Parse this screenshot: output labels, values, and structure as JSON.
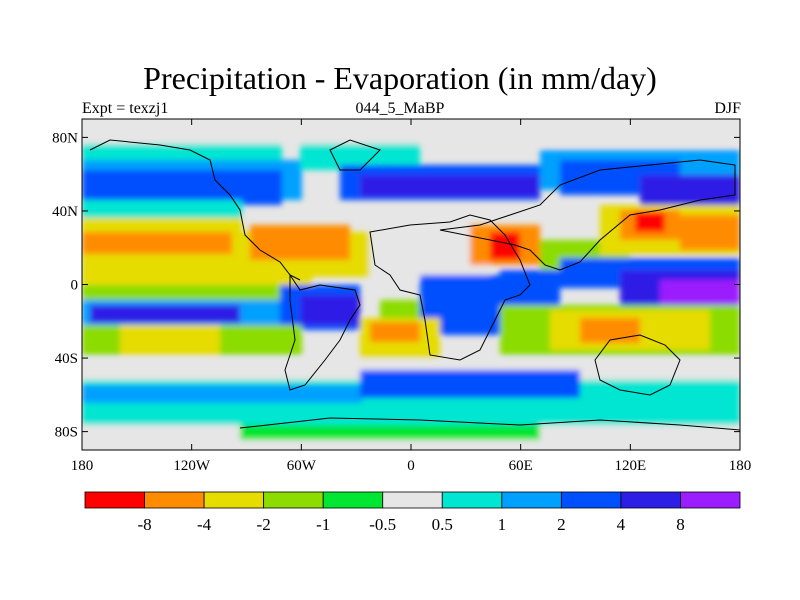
{
  "header": {
    "title": "Precipitation - Evaporation (in mm/day)",
    "left_subtitle": "Expt = texzj1",
    "center_subtitle": "044_5_MaBP",
    "right_subtitle": "DJF"
  },
  "map": {
    "type": "global lat-lon contour map",
    "lon_range": [
      -180,
      180
    ],
    "lat_range": [
      -90,
      90
    ],
    "x_ticks": [
      "180",
      "120W",
      "60W",
      "0",
      "60E",
      "120E",
      "180"
    ],
    "y_ticks": [
      "80N",
      "40N",
      "0",
      "40S",
      "80S"
    ],
    "background_field_color": "#e6e6e6",
    "coastline_color": "#000000"
  },
  "colorbar": {
    "colors": [
      "#ff0000",
      "#ff8c00",
      "#e6dc00",
      "#8cdc00",
      "#00e632",
      "#e6e6e6",
      "#00e6d2",
      "#00a0ff",
      "#0050ff",
      "#2d1ee6",
      "#9b1eff"
    ],
    "labels": [
      "-8",
      "-4",
      "-2",
      "-1",
      "-0.5",
      "0.5",
      "1",
      "2",
      "4",
      "8"
    ]
  }
}
